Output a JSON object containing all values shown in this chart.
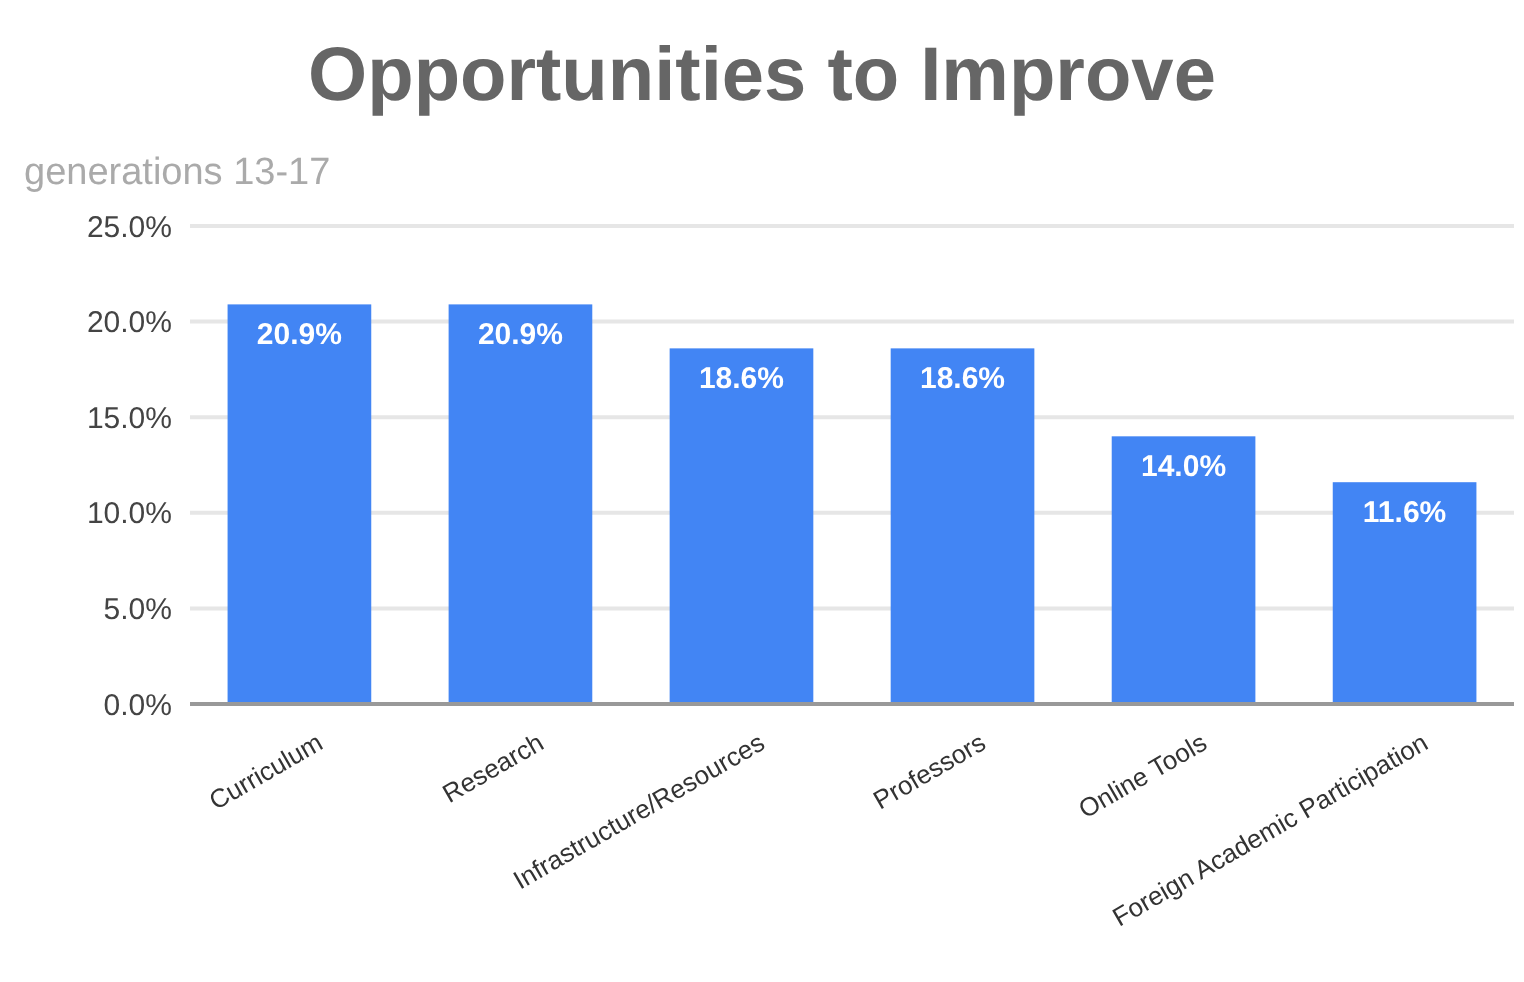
{
  "chart_data": {
    "type": "bar",
    "title": "Opportunities to Improve",
    "subtitle": "generations 13-17",
    "categories": [
      "Curriculum",
      "Research",
      "Infrastructure/Resources",
      "Professors",
      "Online Tools",
      "Foreign Academic Participation"
    ],
    "values": [
      20.9,
      20.9,
      18.6,
      18.6,
      14.0,
      11.6
    ],
    "value_labels": [
      "20.9%",
      "20.9%",
      "18.6%",
      "18.6%",
      "14.0%",
      "11.6%"
    ],
    "color": "#4285f4",
    "ylim": [
      0,
      25
    ],
    "yticks": [
      {
        "value": 0,
        "label": "0.0%"
      },
      {
        "value": 5,
        "label": "5.0%"
      },
      {
        "value": 10,
        "label": "10.0%"
      },
      {
        "value": 15,
        "label": "15.0%"
      },
      {
        "value": 20,
        "label": "20.0%"
      },
      {
        "value": 25,
        "label": "25.0%"
      }
    ],
    "grid": "y"
  }
}
